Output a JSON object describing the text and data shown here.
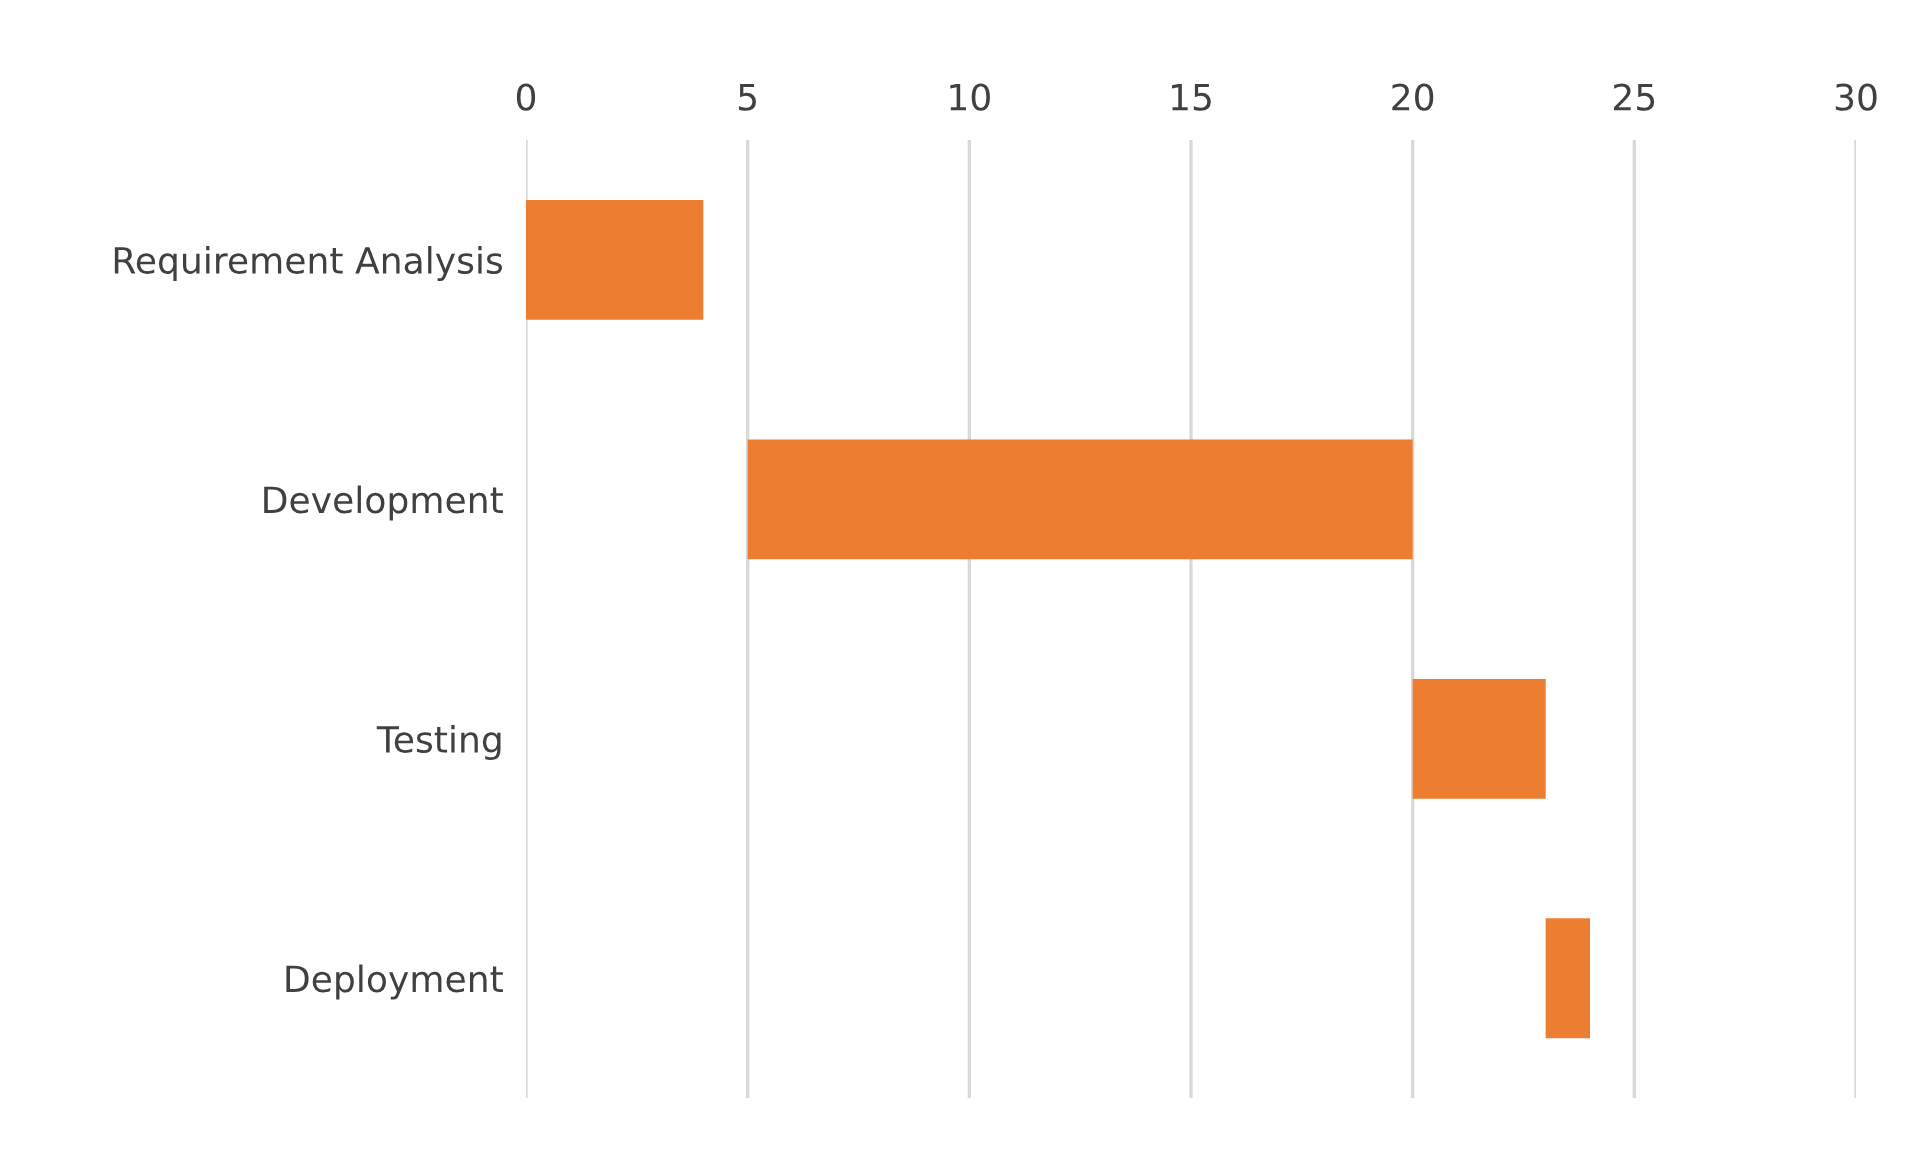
{
  "chart_data": {
    "type": "bar",
    "orientation": "horizontal",
    "categories": [
      "Requirement Analysis",
      "Development",
      "Testing",
      "Deployment"
    ],
    "base": [
      0,
      5,
      20,
      23
    ],
    "values": [
      4,
      15,
      3,
      1
    ],
    "color": "#ed7d31",
    "xlim": [
      0,
      30
    ],
    "xticks": [
      0,
      5,
      10,
      15,
      20,
      25,
      30
    ],
    "grid": "x"
  }
}
